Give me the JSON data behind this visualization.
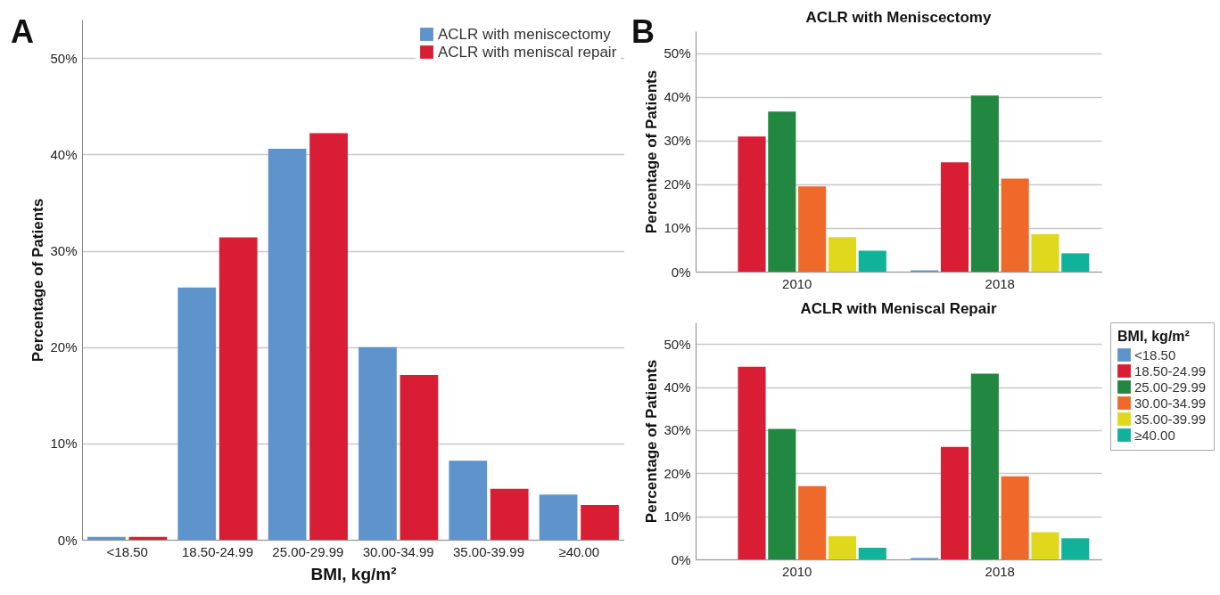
{
  "chart_data": [
    {
      "type": "bar",
      "annotations": [
        "A"
      ],
      "xlabel": "BMI, kg/m²",
      "ylabel": "Percentage of Patients",
      "categories": [
        "<18.50",
        "18.50-24.99",
        "25.00-29.99",
        "30.00-34.99",
        "35.00-39.99",
        "≥40.00"
      ],
      "series": [
        {
          "name": "ACLR with meniscectomy",
          "color": "#5f93cc",
          "values": [
            0.3,
            26.2,
            40.6,
            20.0,
            8.2,
            4.7
          ]
        },
        {
          "name": "ACLR with meniscal repair",
          "color": "#d91d35",
          "values": [
            0.3,
            31.4,
            42.2,
            17.1,
            5.3,
            3.6
          ]
        }
      ],
      "ylim": [
        0,
        54
      ],
      "yticks": [
        {
          "value": 0,
          "label": "0%"
        },
        {
          "value": 10,
          "label": "10%"
        },
        {
          "value": 20,
          "label": "20%"
        },
        {
          "value": 30,
          "label": "30%"
        },
        {
          "value": 40,
          "label": "40%"
        },
        {
          "value": 50,
          "label": "50%"
        }
      ],
      "grid": "y",
      "legend": "top right"
    },
    {
      "type": "bar",
      "annotations": [
        "B"
      ],
      "title": "ACLR with Meniscectomy",
      "ylabel": "Percentage of Patients",
      "categories": [
        "2010",
        "2018"
      ],
      "series": [
        {
          "color": "#5f93cc",
          "values": [
            null,
            0.3
          ]
        },
        {
          "color": "#d91d35",
          "values": [
            30.9,
            25.0
          ]
        },
        {
          "color": "#228740",
          "values": [
            36.6,
            40.3
          ]
        },
        {
          "color": "#ef6a2a",
          "values": [
            19.5,
            21.3
          ]
        },
        {
          "color": "#e0d81c",
          "values": [
            7.9,
            8.6
          ]
        },
        {
          "color": "#10b39a",
          "values": [
            4.8,
            4.2
          ]
        }
      ],
      "ylim": [
        0,
        55
      ],
      "yticks": [
        {
          "value": 0,
          "label": "0%"
        },
        {
          "value": 10,
          "label": "10%"
        },
        {
          "value": 20,
          "label": "20%"
        },
        {
          "value": 30,
          "label": "30%"
        },
        {
          "value": 40,
          "label": "40%"
        },
        {
          "value": 50,
          "label": "50%"
        }
      ],
      "grid": "y"
    },
    {
      "type": "bar",
      "title": "ACLR with Meniscal Repair",
      "ylabel": "Percentage of Patients",
      "legend_title": "BMI, kg/m²",
      "categories": [
        "2010",
        "2018"
      ],
      "series": [
        {
          "name": "<18.50",
          "color": "#5f93cc",
          "values": [
            null,
            0.3
          ]
        },
        {
          "name": "18.50-24.99",
          "color": "#d91d35",
          "values": [
            44.7,
            26.1
          ]
        },
        {
          "name": "25.00-29.99",
          "color": "#228740",
          "values": [
            30.3,
            43.1
          ]
        },
        {
          "name": "30.00-34.99",
          "color": "#ef6a2a",
          "values": [
            17.0,
            19.3
          ]
        },
        {
          "name": "35.00-39.99",
          "color": "#e0d81c",
          "values": [
            5.4,
            6.3
          ]
        },
        {
          "name": "≥40.00",
          "color": "#10b39a",
          "values": [
            2.7,
            4.9
          ]
        }
      ],
      "ylim": [
        0,
        55
      ],
      "yticks": [
        {
          "value": 0,
          "label": "0%"
        },
        {
          "value": 10,
          "label": "10%"
        },
        {
          "value": 20,
          "label": "20%"
        },
        {
          "value": 30,
          "label": "30%"
        },
        {
          "value": 40,
          "label": "40%"
        },
        {
          "value": 50,
          "label": "50%"
        }
      ],
      "grid": "y",
      "legend": "right"
    }
  ]
}
